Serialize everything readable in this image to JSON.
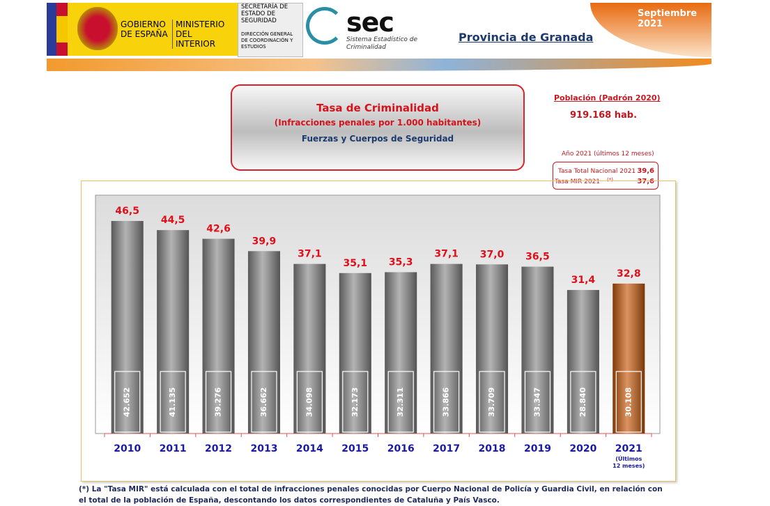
{
  "header": {
    "government": "GOBIERNO DE ESPAÑA",
    "ministry": "MINISTERIO DEL INTERIOR",
    "secretariat": "SECRETARÍA DE ESTADO DE SEGURIDAD",
    "directorate": "DIRECCIÓN GENERAL DE COORDINACIÓN Y ESTUDIOS",
    "logo": "sec",
    "system": "Sistema Estadístico de Criminalidad",
    "date": "Septiembre 2021",
    "province": "Provincia de Granada"
  },
  "info": {
    "title": "Tasa de Criminalidad",
    "subtitle": "(Infracciones penales por 1.000 habitantes)",
    "source": "Fuerzas y Cuerpos de Seguridad",
    "population_label": "Población (Padrón 2020)",
    "population": "919.168 hab.",
    "period": "Año 2021 (últimos 12 meses)",
    "national_label": "Tasa Total Nacional 2021",
    "national_value": "39,6",
    "mir_label": "Tasa MIR 2021",
    "mir_mark": "(*)",
    "mir_value": "37,6"
  },
  "chart_data": {
    "type": "bar",
    "categories": [
      "2010",
      "2011",
      "2012",
      "2013",
      "2014",
      "2015",
      "2016",
      "2017",
      "2018",
      "2019",
      "2020",
      "2021"
    ],
    "last_category_note": "(Últimos 12 meses)",
    "values": [
      46.5,
      44.5,
      42.6,
      39.9,
      37.1,
      35.1,
      35.3,
      37.1,
      37.0,
      36.5,
      31.4,
      32.8
    ],
    "value_labels": [
      "46,5",
      "44,5",
      "42,6",
      "39,9",
      "37,1",
      "35,1",
      "35,3",
      "37,1",
      "37,0",
      "36,5",
      "31,4",
      "32,8"
    ],
    "infractions": {
      "values": [
        42652,
        41135,
        39276,
        36662,
        34098,
        32173,
        32311,
        33866,
        33709,
        33347,
        28840,
        30108
      ],
      "value_labels": [
        "42.652",
        "41.135",
        "39.276",
        "36.662",
        "34.098",
        "32.173",
        "32.311",
        "33.866",
        "33.709",
        "33.347",
        "28.840",
        "30.108"
      ]
    },
    "colors": [
      "#8a8a8a",
      "#8a8a8a",
      "#8a8a8a",
      "#8a8a8a",
      "#8a8a8a",
      "#8a8a8a",
      "#8a8a8a",
      "#8a8a8a",
      "#8a8a8a",
      "#8a8a8a",
      "#8a8a8a",
      "#c85a0c"
    ],
    "ylim": [
      0,
      52
    ]
  },
  "footnote": "(*) La \"Tasa MIR\" está calculada con el total de infracciones penales conocidas por Cuerpo Nacional de Policía y Guardia Civil, en relación con el total de la población de España, descontando los datos correspondientes de Cataluña y País Vasco."
}
